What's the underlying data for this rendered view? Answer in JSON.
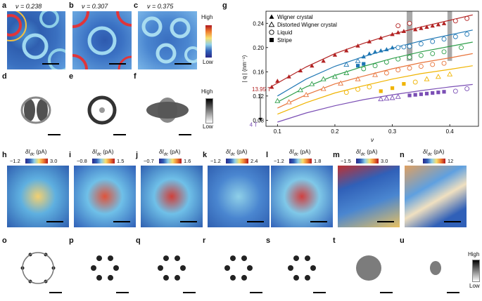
{
  "panels_top": [
    {
      "letter": "a",
      "nu": "ν = 0.238"
    },
    {
      "letter": "b",
      "nu": "ν = 0.307"
    },
    {
      "letter": "c",
      "nu": "ν = 0.375"
    }
  ],
  "panels_fft_top": [
    {
      "letter": "d"
    },
    {
      "letter": "e"
    },
    {
      "letter": "f"
    }
  ],
  "colorbar_top": {
    "high": "High",
    "low": "Low"
  },
  "colorbar_fft_top": {
    "high": "High",
    "low": "Low"
  },
  "panels_bottom": [
    {
      "letter": "h",
      "label": "δI",
      "sub": "dc",
      "unit": " (pA)",
      "min": "−1.2",
      "max": "3.0"
    },
    {
      "letter": "i",
      "label": "δI",
      "sub": "dc",
      "unit": " (pA)",
      "min": "−0.8",
      "max": "1.5"
    },
    {
      "letter": "j",
      "label": "δI",
      "sub": "dc",
      "unit": " (pA)",
      "min": "−0.7",
      "max": "1.6"
    },
    {
      "letter": "k",
      "label": "δI",
      "sub": "dc",
      "unit": " (pA)",
      "min": "−1.2",
      "max": "2.4"
    },
    {
      "letter": "l",
      "label": "δI",
      "sub": "dc",
      "unit": " (pA)",
      "min": "−1.2",
      "max": "1.8"
    },
    {
      "letter": "m",
      "label": "δI",
      "sub": "dc",
      "unit": " (pA)",
      "min": "−1.5",
      "max": "3.0"
    },
    {
      "letter": "n",
      "label": "δI",
      "sub": "dc",
      "unit": " (pA)",
      "min": "−6",
      "max": "12"
    }
  ],
  "panels_fft_bottom": [
    {
      "letter": "o"
    },
    {
      "letter": "p"
    },
    {
      "letter": "q"
    },
    {
      "letter": "r"
    },
    {
      "letter": "s"
    },
    {
      "letter": "t"
    },
    {
      "letter": "u"
    }
  ],
  "colorbar_fft_bottom": {
    "high": "High",
    "low": "Low"
  },
  "chart_data": {
    "type": "scatter",
    "panel": "g",
    "xlabel": "ν",
    "ylabel": "| q | (nm⁻¹)",
    "xlim": [
      0.08,
      0.45
    ],
    "ylim": [
      0.07,
      0.26
    ],
    "xticks": [
      0.1,
      0.2,
      0.3,
      0.4
    ],
    "xtick_labels": [
      "0.1",
      "0.2",
      "0.3",
      "0.4"
    ],
    "yticks": [
      0.08,
      0.12,
      0.16,
      0.2,
      0.24
    ],
    "ytick_labels": [
      "0.08",
      "0.12",
      "0.16",
      "0.20",
      "0.24"
    ],
    "legend_position": "top-left",
    "legend": [
      {
        "name": "Wigner crystal",
        "marker": "triangle-filled"
      },
      {
        "name": "Distorted Wigner crystal",
        "marker": "triangle-open"
      },
      {
        "name": "Liquid",
        "marker": "circle-open"
      },
      {
        "name": "Stripe",
        "marker": "square-filled"
      }
    ],
    "annotations": {
      "top_field": "13.95 T",
      "bottom_field": "4 T"
    },
    "shaded_bands": [
      [
        0.325,
        0.335
      ],
      [
        0.396,
        0.404
      ]
    ],
    "series": [
      {
        "color": "#b22222",
        "curve": [
          [
            0.09,
            0.136
          ],
          [
            0.15,
            0.168
          ],
          [
            0.2,
            0.19
          ],
          [
            0.25,
            0.207
          ],
          [
            0.3,
            0.222
          ],
          [
            0.35,
            0.234
          ],
          [
            0.4,
            0.245
          ],
          [
            0.44,
            0.254
          ]
        ],
        "points": [
          {
            "x": 0.09,
            "y": 0.135,
            "m": "tf"
          },
          {
            "x": 0.1,
            "y": 0.145,
            "m": "tf"
          },
          {
            "x": 0.12,
            "y": 0.152,
            "m": "tf"
          },
          {
            "x": 0.14,
            "y": 0.162,
            "m": "tf"
          },
          {
            "x": 0.16,
            "y": 0.17,
            "m": "tf"
          },
          {
            "x": 0.18,
            "y": 0.178,
            "m": "tf"
          },
          {
            "x": 0.2,
            "y": 0.188,
            "m": "tf"
          },
          {
            "x": 0.22,
            "y": 0.195,
            "m": "tf"
          },
          {
            "x": 0.24,
            "y": 0.203,
            "m": "tf"
          },
          {
            "x": 0.26,
            "y": 0.21,
            "m": "tf"
          },
          {
            "x": 0.28,
            "y": 0.216,
            "m": "tf"
          },
          {
            "x": 0.3,
            "y": 0.222,
            "m": "tf"
          },
          {
            "x": 0.31,
            "y": 0.225,
            "m": "tf"
          },
          {
            "x": 0.32,
            "y": 0.227,
            "m": "tf"
          },
          {
            "x": 0.34,
            "y": 0.23,
            "m": "tf"
          },
          {
            "x": 0.35,
            "y": 0.232,
            "m": "tf"
          },
          {
            "x": 0.36,
            "y": 0.234,
            "m": "tf"
          },
          {
            "x": 0.37,
            "y": 0.236,
            "m": "tf"
          },
          {
            "x": 0.38,
            "y": 0.238,
            "m": "tf"
          },
          {
            "x": 0.39,
            "y": 0.24,
            "m": "tf"
          },
          {
            "x": 0.31,
            "y": 0.236,
            "m": "co"
          },
          {
            "x": 0.33,
            "y": 0.24,
            "m": "co"
          },
          {
            "x": 0.41,
            "y": 0.244,
            "m": "co"
          },
          {
            "x": 0.43,
            "y": 0.248,
            "m": "co"
          }
        ]
      },
      {
        "color": "#1f77b4",
        "curve": [
          [
            0.1,
            0.12
          ],
          [
            0.15,
            0.148
          ],
          [
            0.2,
            0.169
          ],
          [
            0.25,
            0.185
          ],
          [
            0.3,
            0.199
          ],
          [
            0.35,
            0.211
          ],
          [
            0.4,
            0.221
          ],
          [
            0.44,
            0.229
          ]
        ],
        "points": [
          {
            "x": 0.22,
            "y": 0.172,
            "m": "to"
          },
          {
            "x": 0.24,
            "y": 0.178,
            "m": "to"
          },
          {
            "x": 0.25,
            "y": 0.185,
            "m": "tf"
          },
          {
            "x": 0.26,
            "y": 0.19,
            "m": "tf"
          },
          {
            "x": 0.27,
            "y": 0.193,
            "m": "tf"
          },
          {
            "x": 0.28,
            "y": 0.195,
            "m": "tf"
          },
          {
            "x": 0.29,
            "y": 0.197,
            "m": "tf"
          },
          {
            "x": 0.3,
            "y": 0.2,
            "m": "tf"
          },
          {
            "x": 0.31,
            "y": 0.2,
            "m": "co"
          },
          {
            "x": 0.32,
            "y": 0.201,
            "m": "co"
          },
          {
            "x": 0.33,
            "y": 0.202,
            "m": "co"
          },
          {
            "x": 0.35,
            "y": 0.206,
            "m": "co"
          },
          {
            "x": 0.37,
            "y": 0.21,
            "m": "co"
          },
          {
            "x": 0.39,
            "y": 0.214,
            "m": "co"
          },
          {
            "x": 0.41,
            "y": 0.218,
            "m": "co"
          },
          {
            "x": 0.43,
            "y": 0.222,
            "m": "co"
          },
          {
            "x": 0.24,
            "y": 0.17,
            "m": "sq"
          },
          {
            "x": 0.25,
            "y": 0.173,
            "m": "sq"
          }
        ]
      },
      {
        "color": "#2e9e4a",
        "curve": [
          [
            0.1,
            0.11
          ],
          [
            0.15,
            0.135
          ],
          [
            0.2,
            0.154
          ],
          [
            0.25,
            0.169
          ],
          [
            0.3,
            0.182
          ],
          [
            0.35,
            0.193
          ],
          [
            0.4,
            0.202
          ],
          [
            0.44,
            0.209
          ]
        ],
        "points": [
          {
            "x": 0.1,
            "y": 0.112,
            "m": "to"
          },
          {
            "x": 0.14,
            "y": 0.13,
            "m": "to"
          },
          {
            "x": 0.16,
            "y": 0.14,
            "m": "to"
          },
          {
            "x": 0.18,
            "y": 0.148,
            "m": "to"
          },
          {
            "x": 0.2,
            "y": 0.152,
            "m": "to"
          },
          {
            "x": 0.22,
            "y": 0.158,
            "m": "to"
          },
          {
            "x": 0.25,
            "y": 0.165,
            "m": "co"
          },
          {
            "x": 0.27,
            "y": 0.17,
            "m": "co"
          },
          {
            "x": 0.29,
            "y": 0.176,
            "m": "co"
          },
          {
            "x": 0.31,
            "y": 0.181,
            "m": "co"
          },
          {
            "x": 0.33,
            "y": 0.184,
            "m": "co"
          },
          {
            "x": 0.35,
            "y": 0.187,
            "m": "co"
          },
          {
            "x": 0.37,
            "y": 0.19,
            "m": "co"
          },
          {
            "x": 0.39,
            "y": 0.193,
            "m": "co"
          },
          {
            "x": 0.42,
            "y": 0.2,
            "m": "co"
          }
        ]
      },
      {
        "color": "#e8743b",
        "curve": [
          [
            0.1,
            0.1
          ],
          [
            0.15,
            0.122
          ],
          [
            0.2,
            0.14
          ],
          [
            0.25,
            0.153
          ],
          [
            0.3,
            0.165
          ],
          [
            0.35,
            0.175
          ],
          [
            0.4,
            0.183
          ],
          [
            0.44,
            0.19
          ]
        ],
        "points": [
          {
            "x": 0.12,
            "y": 0.11,
            "m": "to"
          },
          {
            "x": 0.15,
            "y": 0.122,
            "m": "to"
          },
          {
            "x": 0.18,
            "y": 0.132,
            "m": "to"
          },
          {
            "x": 0.21,
            "y": 0.141,
            "m": "to"
          },
          {
            "x": 0.24,
            "y": 0.148,
            "m": "to"
          },
          {
            "x": 0.27,
            "y": 0.155,
            "m": "to"
          },
          {
            "x": 0.29,
            "y": 0.158,
            "m": "co"
          },
          {
            "x": 0.31,
            "y": 0.163,
            "m": "co"
          },
          {
            "x": 0.33,
            "y": 0.166,
            "m": "co"
          },
          {
            "x": 0.35,
            "y": 0.169,
            "m": "co"
          },
          {
            "x": 0.37,
            "y": 0.172,
            "m": "co"
          },
          {
            "x": 0.39,
            "y": 0.174,
            "m": "co"
          }
        ]
      },
      {
        "color": "#f0b400",
        "curve": [
          [
            0.1,
            0.09
          ],
          [
            0.15,
            0.109
          ],
          [
            0.2,
            0.125
          ],
          [
            0.25,
            0.137
          ],
          [
            0.3,
            0.148
          ],
          [
            0.35,
            0.157
          ],
          [
            0.4,
            0.164
          ],
          [
            0.44,
            0.17
          ]
        ],
        "points": [
          {
            "x": 0.22,
            "y": 0.126,
            "m": "co"
          },
          {
            "x": 0.24,
            "y": 0.131,
            "m": "co"
          },
          {
            "x": 0.26,
            "y": 0.135,
            "m": "co"
          },
          {
            "x": 0.28,
            "y": 0.128,
            "m": "sq"
          },
          {
            "x": 0.3,
            "y": 0.133,
            "m": "sq"
          },
          {
            "x": 0.32,
            "y": 0.14,
            "m": "sq"
          },
          {
            "x": 0.34,
            "y": 0.143,
            "m": "co"
          },
          {
            "x": 0.36,
            "y": 0.148,
            "m": "to"
          },
          {
            "x": 0.38,
            "y": 0.152,
            "m": "to"
          },
          {
            "x": 0.4,
            "y": 0.156,
            "m": "to"
          }
        ]
      },
      {
        "color": "#7b4fb5",
        "curve": [
          [
            0.1,
            0.077
          ],
          [
            0.15,
            0.092
          ],
          [
            0.2,
            0.104
          ],
          [
            0.25,
            0.114
          ],
          [
            0.3,
            0.122
          ],
          [
            0.35,
            0.129
          ],
          [
            0.4,
            0.135
          ],
          [
            0.44,
            0.139
          ]
        ],
        "points": [
          {
            "x": 0.28,
            "y": 0.115,
            "m": "to"
          },
          {
            "x": 0.29,
            "y": 0.116,
            "m": "to"
          },
          {
            "x": 0.3,
            "y": 0.117,
            "m": "to"
          },
          {
            "x": 0.31,
            "y": 0.119,
            "m": "to"
          },
          {
            "x": 0.33,
            "y": 0.121,
            "m": "sq"
          },
          {
            "x": 0.34,
            "y": 0.122,
            "m": "sq"
          },
          {
            "x": 0.35,
            "y": 0.123,
            "m": "sq"
          },
          {
            "x": 0.36,
            "y": 0.124,
            "m": "sq"
          },
          {
            "x": 0.37,
            "y": 0.125,
            "m": "sq"
          },
          {
            "x": 0.38,
            "y": 0.126,
            "m": "sq"
          },
          {
            "x": 0.39,
            "y": 0.127,
            "m": "sq"
          },
          {
            "x": 0.41,
            "y": 0.128,
            "m": "co"
          },
          {
            "x": 0.43,
            "y": 0.132,
            "m": "co"
          }
        ]
      }
    ]
  }
}
